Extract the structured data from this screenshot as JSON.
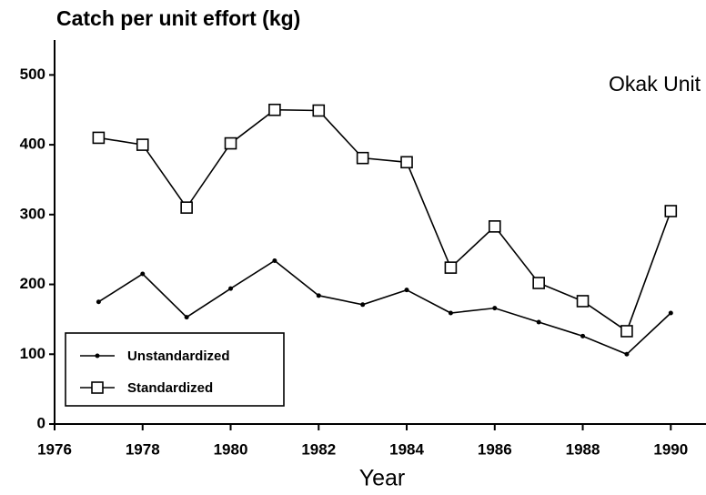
{
  "chart_data": {
    "type": "line",
    "title": "Catch per unit effort (kg)",
    "annotation": "Okak Unit",
    "x_label": "Year",
    "x": [
      1977,
      1978,
      1979,
      1980,
      1981,
      1982,
      1983,
      1984,
      1985,
      1986,
      1987,
      1988,
      1989,
      1990
    ],
    "series": [
      {
        "name": "Unstandardized",
        "color": "#000000",
        "marker": "dot",
        "values": [
          175,
          215,
          153,
          194,
          234,
          184,
          171,
          192,
          159,
          166,
          146,
          126,
          100,
          159
        ]
      },
      {
        "name": "Standardized",
        "color": "#000000",
        "marker": "square",
        "values": [
          410,
          400,
          310,
          402,
          450,
          449,
          381,
          375,
          224,
          283,
          202,
          176,
          133,
          305
        ]
      }
    ],
    "xlim": [
      1976,
      1990.8
    ],
    "ylim": [
      0,
      550
    ],
    "xticks": [
      1976,
      1978,
      1980,
      1982,
      1984,
      1986,
      1988,
      1990
    ],
    "yticks": [
      0,
      100,
      200,
      300,
      400,
      500
    ],
    "legend": "lower left",
    "grid": false
  }
}
